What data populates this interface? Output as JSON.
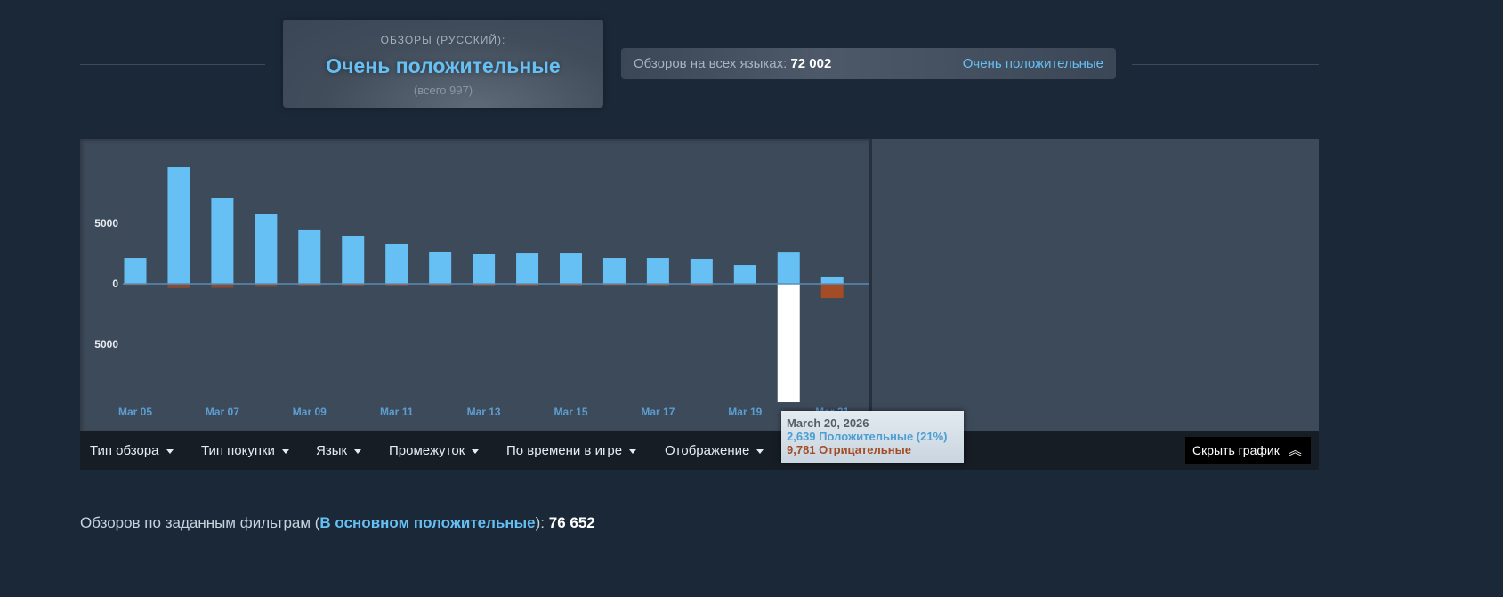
{
  "summary": {
    "label": "ОБЗОРЫ (РУССКИЙ):",
    "rating": "Очень положительные",
    "total": "(всего 997)"
  },
  "all_languages": {
    "label": "Обзоров на всех языках:",
    "count": "72 002",
    "rating": "Очень положительные"
  },
  "filters": [
    {
      "label": "Тип обзора"
    },
    {
      "label": "Тип покупки"
    },
    {
      "label": "Язык"
    },
    {
      "label": "Промежуток"
    },
    {
      "label": "По времени в игре"
    },
    {
      "label": "Отображение"
    }
  ],
  "hide_graph_label": "Скрыть график",
  "tooltip": {
    "date": "March 20, 2026",
    "positive": "2,639 Положительные (21%)",
    "negative": "9,781 Отрицательные"
  },
  "footer": {
    "prefix": "Обзоров по заданным фильтрам (",
    "rating": "В основном положительные",
    "suffix": "):",
    "count": "76 652"
  },
  "colors": {
    "positive": "#66c0f4",
    "negative": "#a34c25",
    "highlight": "#ffffff",
    "panel": "#3d4a5a",
    "page": "#1b2838"
  },
  "chart_data": {
    "type": "bar",
    "categories": [
      "Mar 05",
      "Mar 06",
      "Mar 07",
      "Mar 08",
      "Mar 09",
      "Mar 10",
      "Mar 11",
      "Mar 12",
      "Mar 13",
      "Mar 14",
      "Mar 15",
      "Mar 16",
      "Mar 17",
      "Mar 18",
      "Mar 19",
      "Mar 20",
      "Mar 21"
    ],
    "x_tick_labels": [
      "Mar 05",
      "Mar 07",
      "Mar 09",
      "Mar 11",
      "Mar 13",
      "Mar 15",
      "Mar 17",
      "Mar 19",
      "Mar 21"
    ],
    "y_tick_labels": [
      "5000",
      "0",
      "5000"
    ],
    "ylim": [
      -10000,
      10000
    ],
    "series": [
      {
        "name": "Положительные",
        "values": [
          2130,
          9630,
          7130,
          5740,
          4490,
          3970,
          3310,
          2650,
          2430,
          2570,
          2570,
          2130,
          2130,
          2060,
          1540,
          2639,
          590
        ]
      },
      {
        "name": "Отрицательные",
        "values": [
          -100,
          -350,
          -330,
          -250,
          -200,
          -180,
          -200,
          -150,
          -150,
          -180,
          -150,
          -120,
          -150,
          -150,
          -80,
          -9781,
          -1180
        ]
      }
    ],
    "highlighted": "Mar 20"
  }
}
